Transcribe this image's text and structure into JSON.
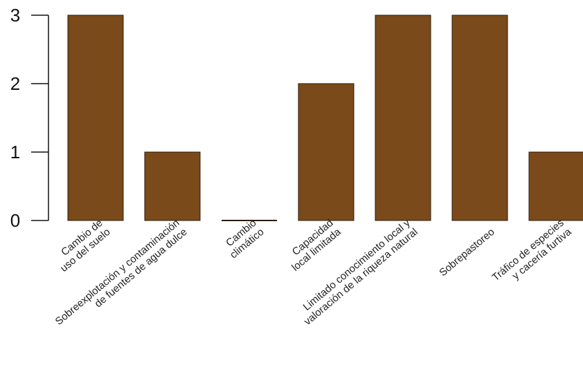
{
  "chart_data": {
    "type": "bar",
    "title": "",
    "xlabel": "",
    "ylabel": "",
    "categories": [
      [
        "Cambio de",
        "uso del suelo"
      ],
      [
        "Sobreexplotación y contaminación",
        "de fuentes de agua dulce"
      ],
      [
        "Cambio",
        "climático"
      ],
      [
        "Capacidad",
        "local limitada"
      ],
      [
        "Limitado conocimiento local y",
        "valoración de la riqueza natural"
      ],
      [
        "Sobrepastoreo"
      ],
      [
        "Tráfico de especies",
        "y cacería furtiva"
      ]
    ],
    "values": [
      3,
      1,
      0,
      2,
      3,
      3,
      1
    ],
    "ylim": [
      0,
      3
    ],
    "yticks": [
      0,
      1,
      2,
      3
    ],
    "ytick_labels": [
      "0",
      "1",
      "2",
      "3"
    ],
    "grid": false,
    "bar_color": "#7a4a1a"
  }
}
